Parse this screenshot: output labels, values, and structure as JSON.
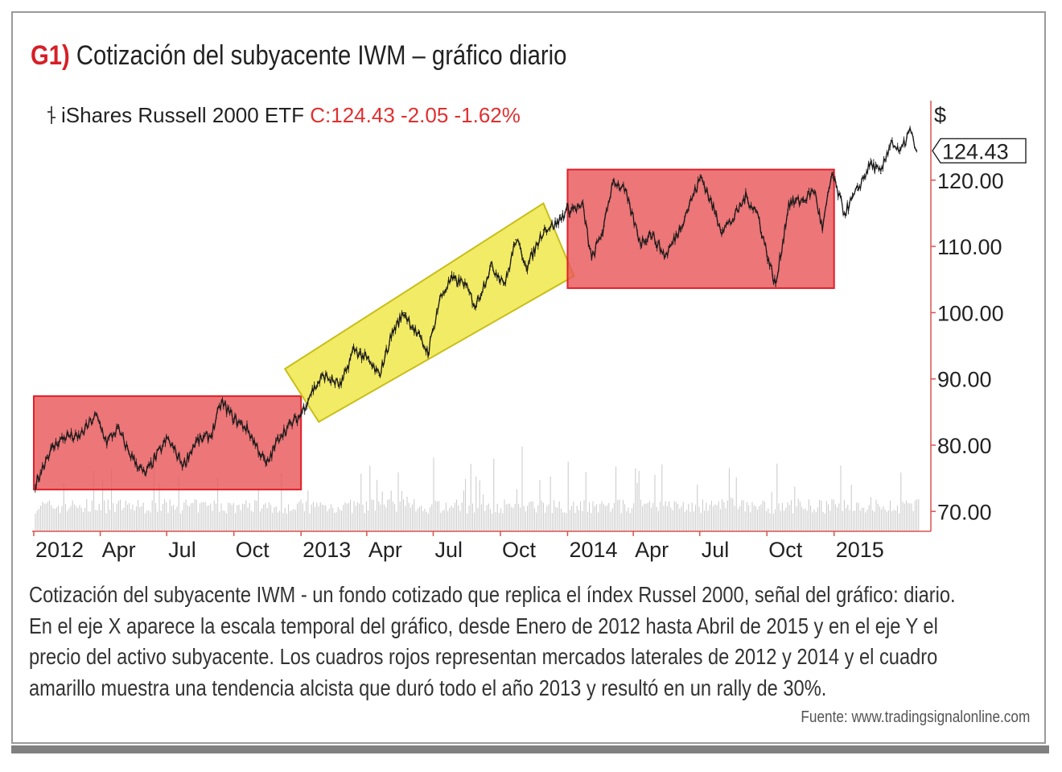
{
  "header": {
    "number": "G1)",
    "title": "Cotización del subyacente IWM – gráfico diario"
  },
  "legend": {
    "name": "iShares Russell 2000 ETF",
    "quote": "C:124.43 -2.05 -1.62%"
  },
  "caption": {
    "lines": [
      "Cotización del subyacente IWM - un fondo cotizado que replica el índex Russel 2000, señal del gráfico: diario.",
      "En el eje X aparece la escala temporal del gráfico, desde Enero de 2012 hasta Abril de 2015 y en el eje Y el",
      "precio del activo subyacente. Los cuadros rojos representan mercados laterales de 2012 y 2014 y el cuadro",
      "amarillo muestra una tendencia alcista que duró todo el año 2013 y resultó en un rally de 30%."
    ],
    "source": "Fuente: www.tradingsignalonline.com"
  },
  "chart_data": {
    "type": "line",
    "unit_label": "$",
    "last_price_label": "124.43",
    "ylim": [
      67,
      132
    ],
    "y_ticks": [
      "70.00",
      "80.00",
      "90.00",
      "100.00",
      "110.00",
      "120.00"
    ],
    "x_ticks": [
      "2012",
      "Apr",
      "Jul",
      "Oct",
      "2013",
      "Apr",
      "Jul",
      "Oct",
      "2014",
      "Apr",
      "Jul",
      "Oct",
      "2015"
    ],
    "x_tick_dates": [
      "2012-01",
      "2012-04",
      "2012-07",
      "2012-10",
      "2013-01",
      "2013-04",
      "2013-07",
      "2013-10",
      "2014-01",
      "2014-04",
      "2014-07",
      "2014-10",
      "2015-01"
    ],
    "series": [
      {
        "values": [
          {
            "x": "2012-01-03",
            "y": 74.0
          },
          {
            "x": "2012-01-20",
            "y": 78.5
          },
          {
            "x": "2012-02-03",
            "y": 80.5
          },
          {
            "x": "2012-02-17",
            "y": 81.5
          },
          {
            "x": "2012-03-01",
            "y": 81.0
          },
          {
            "x": "2012-03-26",
            "y": 84.5
          },
          {
            "x": "2012-04-10",
            "y": 80.5
          },
          {
            "x": "2012-04-25",
            "y": 82.5
          },
          {
            "x": "2012-05-10",
            "y": 79.0
          },
          {
            "x": "2012-06-01",
            "y": 75.5
          },
          {
            "x": "2012-06-15",
            "y": 78.0
          },
          {
            "x": "2012-07-02",
            "y": 81.0
          },
          {
            "x": "2012-07-24",
            "y": 77.0
          },
          {
            "x": "2012-08-10",
            "y": 80.5
          },
          {
            "x": "2012-08-31",
            "y": 81.5
          },
          {
            "x": "2012-09-14",
            "y": 86.5
          },
          {
            "x": "2012-10-01",
            "y": 84.0
          },
          {
            "x": "2012-10-19",
            "y": 82.5
          },
          {
            "x": "2012-11-15",
            "y": 77.0
          },
          {
            "x": "2012-12-03",
            "y": 81.5
          },
          {
            "x": "2012-12-31",
            "y": 84.5
          },
          {
            "x": "2013-01-15",
            "y": 88.0
          },
          {
            "x": "2013-02-01",
            "y": 90.5
          },
          {
            "x": "2013-02-25",
            "y": 89.0
          },
          {
            "x": "2013-03-14",
            "y": 94.5
          },
          {
            "x": "2013-04-01",
            "y": 93.0
          },
          {
            "x": "2013-04-18",
            "y": 90.5
          },
          {
            "x": "2013-05-06",
            "y": 97.0
          },
          {
            "x": "2013-05-22",
            "y": 100.0
          },
          {
            "x": "2013-06-05",
            "y": 97.5
          },
          {
            "x": "2013-06-24",
            "y": 94.0
          },
          {
            "x": "2013-07-10",
            "y": 102.0
          },
          {
            "x": "2013-07-25",
            "y": 105.0
          },
          {
            "x": "2013-08-12",
            "y": 104.5
          },
          {
            "x": "2013-08-28",
            "y": 101.0
          },
          {
            "x": "2013-09-18",
            "y": 107.0
          },
          {
            "x": "2013-10-08",
            "y": 104.5
          },
          {
            "x": "2013-10-22",
            "y": 111.0
          },
          {
            "x": "2013-11-07",
            "y": 107.0
          },
          {
            "x": "2013-11-29",
            "y": 112.5
          },
          {
            "x": "2013-12-18",
            "y": 113.5
          },
          {
            "x": "2013-12-31",
            "y": 115.5
          },
          {
            "x": "2014-01-22",
            "y": 116.0
          },
          {
            "x": "2014-02-03",
            "y": 108.0
          },
          {
            "x": "2014-02-20",
            "y": 113.0
          },
          {
            "x": "2014-03-04",
            "y": 120.0
          },
          {
            "x": "2014-03-20",
            "y": 118.5
          },
          {
            "x": "2014-04-11",
            "y": 110.5
          },
          {
            "x": "2014-04-25",
            "y": 112.0
          },
          {
            "x": "2014-05-15",
            "y": 108.5
          },
          {
            "x": "2014-06-03",
            "y": 112.5
          },
          {
            "x": "2014-06-23",
            "y": 118.0
          },
          {
            "x": "2014-07-03",
            "y": 120.5
          },
          {
            "x": "2014-07-31",
            "y": 112.5
          },
          {
            "x": "2014-08-15",
            "y": 114.0
          },
          {
            "x": "2014-09-02",
            "y": 117.5
          },
          {
            "x": "2014-09-18",
            "y": 115.0
          },
          {
            "x": "2014-10-02",
            "y": 108.5
          },
          {
            "x": "2014-10-13",
            "y": 104.0
          },
          {
            "x": "2014-10-31",
            "y": 116.5
          },
          {
            "x": "2014-11-20",
            "y": 117.0
          },
          {
            "x": "2014-12-05",
            "y": 118.5
          },
          {
            "x": "2014-12-16",
            "y": 112.5
          },
          {
            "x": "2014-12-29",
            "y": 121.0
          },
          {
            "x": "2015-01-15",
            "y": 115.0
          },
          {
            "x": "2015-02-02",
            "y": 118.5
          },
          {
            "x": "2015-02-20",
            "y": 122.5
          },
          {
            "x": "2015-03-06",
            "y": 121.0
          },
          {
            "x": "2015-03-20",
            "y": 126.0
          },
          {
            "x": "2015-04-01",
            "y": 124.0
          },
          {
            "x": "2015-04-15",
            "y": 127.5
          },
          {
            "x": "2015-04-24",
            "y": 124.4
          }
        ]
      }
    ],
    "boxes": [
      {
        "kind": "range",
        "color": "#e8585a",
        "x_start": "2012-01-01",
        "x_end": "2013-01-01",
        "y_low": 73.3,
        "y_high": 87.4
      },
      {
        "kind": "trend",
        "color": "#f0e84a",
        "x_start": "2013-01-01",
        "x_end": "2014-01-01",
        "y_low_start": 84.0,
        "y_high_start": 92.0,
        "y_low_end": 106.5,
        "y_high_end": 116.5
      },
      {
        "kind": "range",
        "color": "#e8585a",
        "x_start": "2014-01-01",
        "x_end": "2015-01-01",
        "y_low": 103.7,
        "y_high": 121.6
      }
    ]
  },
  "colors": {
    "accent_red": "#d61f26",
    "axis_red": "#d9534f",
    "price_line": "#1a1a1a",
    "volume": "#c8c8c8"
  }
}
